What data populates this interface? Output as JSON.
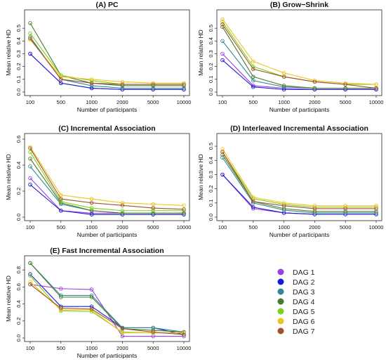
{
  "colors": {
    "dag1": "#9b3fe8",
    "dag2": "#1a1ad0",
    "dag3": "#2f8a95",
    "dag4": "#4d7a2a",
    "dag5": "#7ccf1a",
    "dag6": "#f0c419",
    "dag7": "#a0522d"
  },
  "legend": {
    "entries": [
      {
        "label": "DAG 1",
        "color_key": "dag1"
      },
      {
        "label": "DAG 2",
        "color_key": "dag2"
      },
      {
        "label": "DAG 3",
        "color_key": "dag3"
      },
      {
        "label": "DAG 4",
        "color_key": "dag4"
      },
      {
        "label": "DAG 5",
        "color_key": "dag5"
      },
      {
        "label": "DAG 6",
        "color_key": "dag6"
      },
      {
        "label": "DAG 7",
        "color_key": "dag7"
      }
    ]
  },
  "chart_data": [
    {
      "type": "line",
      "title": "(A) PC",
      "xlabel": "Number of participants",
      "ylabel": "Mean relative HD",
      "categories": [
        "100",
        "500",
        "1000",
        "2000",
        "5000",
        "10000"
      ],
      "ylim": [
        0,
        0.6
      ],
      "yticks": [
        "0.0",
        "0.1",
        "0.2",
        "0.3",
        "0.4",
        "0.5"
      ],
      "series": [
        {
          "color_key": "dag1",
          "values": [
            0.3,
            0.07,
            0.03,
            0.02,
            0.02,
            0.02
          ]
        },
        {
          "color_key": "dag2",
          "values": [
            0.3,
            0.07,
            0.03,
            0.02,
            0.02,
            0.02
          ]
        },
        {
          "color_key": "dag3",
          "values": [
            0.43,
            0.1,
            0.05,
            0.03,
            0.03,
            0.03
          ]
        },
        {
          "color_key": "dag4",
          "values": [
            0.54,
            0.13,
            0.07,
            0.05,
            0.05,
            0.05
          ]
        },
        {
          "color_key": "dag5",
          "values": [
            0.46,
            0.13,
            0.09,
            0.06,
            0.06,
            0.06
          ]
        },
        {
          "color_key": "dag6",
          "values": [
            0.41,
            0.12,
            0.1,
            0.08,
            0.07,
            0.07
          ]
        },
        {
          "color_key": "dag7",
          "values": [
            0.42,
            0.1,
            0.07,
            0.06,
            0.06,
            0.06
          ]
        }
      ]
    },
    {
      "type": "line",
      "title": "(B) Grow−Shrink",
      "xlabel": "Number of participants",
      "ylabel": "Mean relative HD",
      "categories": [
        "100",
        "500",
        "1000",
        "2000",
        "5000",
        "10000"
      ],
      "ylim": [
        0,
        0.6
      ],
      "yticks": [
        "0.0",
        "0.1",
        "0.2",
        "0.3",
        "0.4",
        "0.5"
      ],
      "series": [
        {
          "color_key": "dag1",
          "values": [
            0.3,
            0.05,
            0.03,
            0.02,
            0.02,
            0.02
          ]
        },
        {
          "color_key": "dag2",
          "values": [
            0.25,
            0.04,
            0.02,
            0.02,
            0.02,
            0.02
          ]
        },
        {
          "color_key": "dag3",
          "values": [
            0.4,
            0.09,
            0.04,
            0.03,
            0.03,
            0.03
          ]
        },
        {
          "color_key": "dag4",
          "values": [
            0.51,
            0.12,
            0.05,
            0.03,
            0.03,
            0.03
          ]
        },
        {
          "color_key": "dag5",
          "values": [
            0.55,
            0.2,
            0.12,
            0.08,
            0.06,
            0.06
          ]
        },
        {
          "color_key": "dag6",
          "values": [
            0.57,
            0.24,
            0.15,
            0.09,
            0.07,
            0.06
          ]
        },
        {
          "color_key": "dag7",
          "values": [
            0.53,
            0.18,
            0.12,
            0.08,
            0.06,
            0.03
          ]
        }
      ]
    },
    {
      "type": "line",
      "title": "(C) Incremental Association",
      "xlabel": "Number of participants",
      "ylabel": "Mean relative HD",
      "categories": [
        "100",
        "500",
        "1000",
        "2000",
        "5000",
        "10000"
      ],
      "ylim": [
        0,
        0.6
      ],
      "yticks": [
        "0.0",
        "0.2",
        "0.4",
        "0.6"
      ],
      "series": [
        {
          "color_key": "dag1",
          "values": [
            0.3,
            0.05,
            0.03,
            0.03,
            0.03,
            0.03
          ]
        },
        {
          "color_key": "dag2",
          "values": [
            0.25,
            0.05,
            0.02,
            0.02,
            0.02,
            0.02
          ]
        },
        {
          "color_key": "dag3",
          "values": [
            0.39,
            0.1,
            0.05,
            0.03,
            0.03,
            0.03
          ]
        },
        {
          "color_key": "dag4",
          "values": [
            0.45,
            0.11,
            0.05,
            0.03,
            0.03,
            0.03
          ]
        },
        {
          "color_key": "dag5",
          "values": [
            0.5,
            0.12,
            0.07,
            0.05,
            0.05,
            0.05
          ]
        },
        {
          "color_key": "dag6",
          "values": [
            0.54,
            0.17,
            0.14,
            0.11,
            0.1,
            0.09
          ]
        },
        {
          "color_key": "dag7",
          "values": [
            0.53,
            0.14,
            0.11,
            0.09,
            0.07,
            0.06
          ]
        }
      ]
    },
    {
      "type": "line",
      "title": "(D) Interleaved Incremental Association",
      "xlabel": "Number of participants",
      "ylabel": "Mean relative HD",
      "categories": [
        "100",
        "500",
        "1000",
        "2000",
        "5000",
        "10000"
      ],
      "ylim": [
        0,
        0.55
      ],
      "yticks": [
        "0.0",
        "0.1",
        "0.2",
        "0.3",
        "0.4",
        "0.5"
      ],
      "series": [
        {
          "color_key": "dag1",
          "values": [
            0.3,
            0.06,
            0.03,
            0.02,
            0.02,
            0.02
          ]
        },
        {
          "color_key": "dag2",
          "values": [
            0.3,
            0.07,
            0.03,
            0.02,
            0.02,
            0.02
          ]
        },
        {
          "color_key": "dag3",
          "values": [
            0.42,
            0.1,
            0.05,
            0.03,
            0.03,
            0.03
          ]
        },
        {
          "color_key": "dag4",
          "values": [
            0.44,
            0.11,
            0.06,
            0.04,
            0.04,
            0.04
          ]
        },
        {
          "color_key": "dag5",
          "values": [
            0.46,
            0.13,
            0.09,
            0.07,
            0.07,
            0.07
          ]
        },
        {
          "color_key": "dag6",
          "values": [
            0.48,
            0.14,
            0.1,
            0.08,
            0.08,
            0.08
          ]
        },
        {
          "color_key": "dag7",
          "values": [
            0.46,
            0.11,
            0.08,
            0.06,
            0.06,
            0.06
          ]
        }
      ]
    },
    {
      "type": "line",
      "title": "(E) Fast Incremental Association",
      "xlabel": "Number of participants",
      "ylabel": "Mean relative HD",
      "categories": [
        "100",
        "500",
        "1000",
        "2000",
        "5000",
        "10000"
      ],
      "ylim": [
        0,
        0.9
      ],
      "yticks": [
        "0.0",
        "0.2",
        "0.4",
        "0.6",
        "0.8"
      ],
      "series": [
        {
          "color_key": "dag1",
          "values": [
            0.63,
            0.58,
            0.57,
            0.02,
            0.02,
            0.02
          ]
        },
        {
          "color_key": "dag2",
          "values": [
            0.75,
            0.37,
            0.37,
            0.12,
            0.12,
            0.04
          ]
        },
        {
          "color_key": "dag3",
          "values": [
            0.88,
            0.5,
            0.5,
            0.12,
            0.12,
            0.07
          ]
        },
        {
          "color_key": "dag4",
          "values": [
            0.88,
            0.48,
            0.48,
            0.11,
            0.09,
            0.07
          ]
        },
        {
          "color_key": "dag5",
          "values": [
            0.73,
            0.32,
            0.31,
            0.07,
            0.06,
            0.06
          ]
        },
        {
          "color_key": "dag6",
          "values": [
            0.66,
            0.33,
            0.33,
            0.06,
            0.06,
            0.06
          ]
        },
        {
          "color_key": "dag7",
          "values": [
            0.63,
            0.35,
            0.34,
            0.11,
            0.07,
            0.04
          ]
        }
      ]
    }
  ]
}
